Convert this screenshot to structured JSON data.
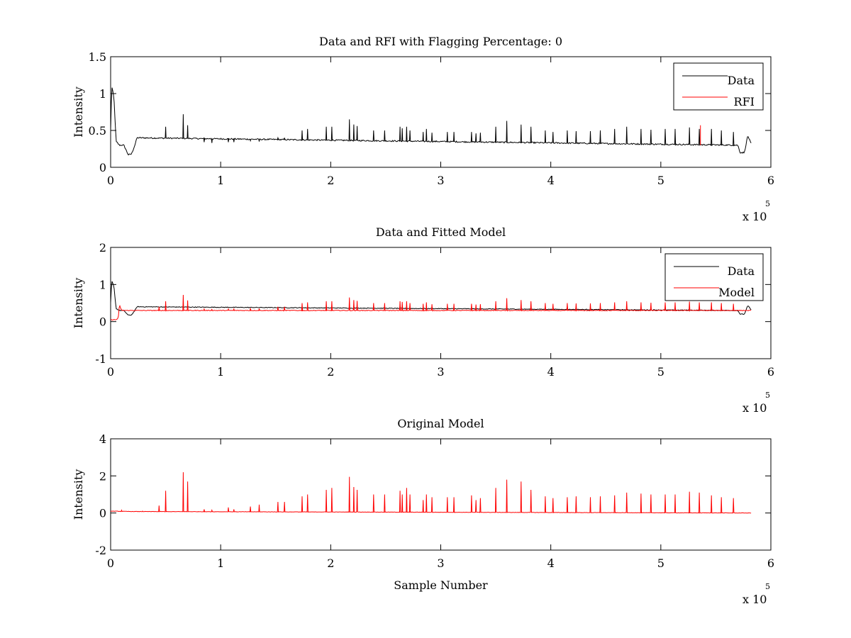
{
  "figure": {
    "background": "#ffffff"
  },
  "chart_data": [
    {
      "type": "line",
      "title": "Data and RFI with Flagging Percentage: 0",
      "xlabel": "",
      "ylabel": "Intensity",
      "xlim": [
        0,
        6
      ],
      "ylim": [
        0,
        1.5
      ],
      "xticks": [
        "0",
        "1",
        "2",
        "3",
        "4",
        "5",
        "6"
      ],
      "yticks": [
        "0",
        "0.5",
        "1",
        "1.5"
      ],
      "x_scale_label": "x 10",
      "x_scale_exponent": "5",
      "legend_position": "top-right",
      "grid": false,
      "series": [
        {
          "name": "Data",
          "color": "#000000",
          "baseline": 0.3,
          "profile": [
            [
              0,
              0.5
            ],
            [
              0.01,
              1.1
            ],
            [
              0.03,
              0.95
            ],
            [
              0.05,
              0.35
            ],
            [
              0.08,
              0.3
            ],
            [
              0.12,
              0.3
            ],
            [
              0.16,
              0.17
            ],
            [
              0.19,
              0.18
            ],
            [
              0.22,
              0.3
            ],
            [
              0.24,
              0.4
            ],
            [
              5.7,
              0.3
            ],
            [
              5.72,
              0.2
            ],
            [
              5.76,
              0.2
            ],
            [
              5.79,
              0.43
            ],
            [
              5.82,
              0.32
            ]
          ],
          "spikes": [
            [
              0.44,
              0.4
            ],
            [
              0.5,
              0.55
            ],
            [
              0.66,
              0.72
            ],
            [
              0.7,
              0.57
            ],
            [
              0.85,
              0.34
            ],
            [
              0.92,
              0.33
            ],
            [
              1.07,
              0.34
            ],
            [
              1.12,
              0.34
            ],
            [
              1.27,
              0.36
            ],
            [
              1.35,
              0.35
            ],
            [
              1.52,
              0.4
            ],
            [
              1.58,
              0.4
            ],
            [
              1.74,
              0.5
            ],
            [
              1.79,
              0.52
            ],
            [
              1.96,
              0.55
            ],
            [
              2.01,
              0.55
            ],
            [
              2.17,
              0.65
            ],
            [
              2.21,
              0.58
            ],
            [
              2.24,
              0.56
            ],
            [
              2.39,
              0.5
            ],
            [
              2.49,
              0.5
            ],
            [
              2.63,
              0.55
            ],
            [
              2.65,
              0.53
            ],
            [
              2.69,
              0.55
            ],
            [
              2.72,
              0.5
            ],
            [
              2.84,
              0.48
            ],
            [
              2.87,
              0.52
            ],
            [
              2.92,
              0.47
            ],
            [
              3.06,
              0.48
            ],
            [
              3.12,
              0.48
            ],
            [
              3.28,
              0.48
            ],
            [
              3.32,
              0.46
            ],
            [
              3.36,
              0.47
            ],
            [
              3.5,
              0.55
            ],
            [
              3.6,
              0.63
            ],
            [
              3.73,
              0.58
            ],
            [
              3.82,
              0.55
            ],
            [
              3.95,
              0.5
            ],
            [
              4.02,
              0.48
            ],
            [
              4.15,
              0.5
            ],
            [
              4.23,
              0.49
            ],
            [
              4.36,
              0.49
            ],
            [
              4.45,
              0.5
            ],
            [
              4.58,
              0.52
            ],
            [
              4.69,
              0.55
            ],
            [
              4.82,
              0.52
            ],
            [
              4.91,
              0.51
            ],
            [
              5.04,
              0.52
            ],
            [
              5.13,
              0.52
            ],
            [
              5.26,
              0.54
            ],
            [
              5.35,
              0.52
            ],
            [
              5.46,
              0.52
            ],
            [
              5.55,
              0.5
            ],
            [
              5.66,
              0.48
            ]
          ]
        },
        {
          "name": "RFI",
          "color": "#ff0000",
          "points": [
            [
              5.36,
              0.3
            ],
            [
              5.36,
              0.57
            ]
          ]
        }
      ]
    },
    {
      "type": "line",
      "title": "Data and Fitted Model",
      "xlabel": "",
      "ylabel": "Intensity",
      "xlim": [
        0,
        6
      ],
      "ylim": [
        -1,
        2
      ],
      "xticks": [
        "0",
        "1",
        "2",
        "3",
        "4",
        "5",
        "6"
      ],
      "yticks": [
        "-1",
        "0",
        "1",
        "2"
      ],
      "x_scale_label": "x 10",
      "x_scale_exponent": "5",
      "legend_position": "top-right",
      "grid": false,
      "series": [
        {
          "name": "Data",
          "color": "#000000",
          "baseline": 0.3,
          "profile": [
            [
              0,
              0.5
            ],
            [
              0.01,
              1.1
            ],
            [
              0.03,
              0.95
            ],
            [
              0.05,
              0.35
            ],
            [
              0.08,
              0.3
            ],
            [
              0.12,
              0.3
            ],
            [
              0.16,
              0.17
            ],
            [
              0.19,
              0.18
            ],
            [
              0.22,
              0.3
            ],
            [
              0.24,
              0.4
            ],
            [
              5.7,
              0.3
            ],
            [
              5.72,
              0.2
            ],
            [
              5.76,
              0.2
            ],
            [
              5.79,
              0.43
            ],
            [
              5.82,
              0.32
            ]
          ],
          "spikes": []
        },
        {
          "name": "Model",
          "color": "#ff0000",
          "baseline": 0.3,
          "profile": [
            [
              0,
              0.05
            ],
            [
              0.05,
              0.05
            ],
            [
              0.07,
              0.1
            ],
            [
              0.08,
              0.45
            ],
            [
              0.1,
              0.3
            ],
            [
              0.12,
              0.3
            ],
            [
              5.82,
              0.3
            ]
          ],
          "spikes": [
            [
              0.44,
              0.4
            ],
            [
              0.5,
              0.55
            ],
            [
              0.66,
              0.72
            ],
            [
              0.7,
              0.57
            ],
            [
              0.85,
              0.34
            ],
            [
              0.92,
              0.33
            ],
            [
              1.07,
              0.34
            ],
            [
              1.12,
              0.34
            ],
            [
              1.27,
              0.36
            ],
            [
              1.35,
              0.35
            ],
            [
              1.52,
              0.4
            ],
            [
              1.58,
              0.4
            ],
            [
              1.74,
              0.5
            ],
            [
              1.79,
              0.52
            ],
            [
              1.96,
              0.55
            ],
            [
              2.01,
              0.55
            ],
            [
              2.17,
              0.65
            ],
            [
              2.21,
              0.58
            ],
            [
              2.24,
              0.56
            ],
            [
              2.39,
              0.5
            ],
            [
              2.49,
              0.5
            ],
            [
              2.63,
              0.55
            ],
            [
              2.65,
              0.53
            ],
            [
              2.69,
              0.55
            ],
            [
              2.72,
              0.5
            ],
            [
              2.84,
              0.48
            ],
            [
              2.87,
              0.52
            ],
            [
              2.92,
              0.47
            ],
            [
              3.06,
              0.48
            ],
            [
              3.12,
              0.48
            ],
            [
              3.28,
              0.48
            ],
            [
              3.32,
              0.46
            ],
            [
              3.36,
              0.47
            ],
            [
              3.5,
              0.55
            ],
            [
              3.6,
              0.63
            ],
            [
              3.73,
              0.58
            ],
            [
              3.82,
              0.55
            ],
            [
              3.95,
              0.5
            ],
            [
              4.02,
              0.48
            ],
            [
              4.15,
              0.5
            ],
            [
              4.23,
              0.49
            ],
            [
              4.36,
              0.49
            ],
            [
              4.45,
              0.5
            ],
            [
              4.58,
              0.52
            ],
            [
              4.69,
              0.55
            ],
            [
              4.82,
              0.52
            ],
            [
              4.91,
              0.51
            ],
            [
              5.04,
              0.52
            ],
            [
              5.13,
              0.52
            ],
            [
              5.26,
              0.54
            ],
            [
              5.35,
              0.52
            ],
            [
              5.46,
              0.52
            ],
            [
              5.55,
              0.5
            ],
            [
              5.66,
              0.48
            ]
          ]
        }
      ]
    },
    {
      "type": "line",
      "title": "Original Model",
      "xlabel": "Sample Number",
      "ylabel": "Intensity",
      "xlim": [
        0,
        6
      ],
      "ylim": [
        -2,
        4
      ],
      "xticks": [
        "0",
        "1",
        "2",
        "3",
        "4",
        "5",
        "6"
      ],
      "yticks": [
        "-2",
        "0",
        "2",
        "4"
      ],
      "x_scale_label": "x 10",
      "x_scale_exponent": "5",
      "legend_position": "none",
      "grid": false,
      "series": [
        {
          "color": "#ff0000",
          "baseline": 0.0,
          "profile": [
            [
              0,
              0.1
            ],
            [
              0.2,
              0.08
            ],
            [
              5.82,
              0.0
            ]
          ],
          "spikes": [
            [
              0.1,
              0.15
            ],
            [
              0.29,
              0.1
            ],
            [
              0.44,
              0.4
            ],
            [
              0.5,
              1.2
            ],
            [
              0.66,
              2.2
            ],
            [
              0.7,
              1.7
            ],
            [
              0.85,
              0.2
            ],
            [
              0.92,
              0.15
            ],
            [
              1.07,
              0.3
            ],
            [
              1.12,
              0.2
            ],
            [
              1.27,
              0.35
            ],
            [
              1.35,
              0.45
            ],
            [
              1.52,
              0.6
            ],
            [
              1.58,
              0.6
            ],
            [
              1.74,
              0.9
            ],
            [
              1.79,
              1.0
            ],
            [
              1.96,
              1.25
            ],
            [
              2.01,
              1.35
            ],
            [
              2.17,
              1.95
            ],
            [
              2.21,
              1.4
            ],
            [
              2.24,
              1.25
            ],
            [
              2.39,
              1.0
            ],
            [
              2.49,
              1.0
            ],
            [
              2.63,
              1.2
            ],
            [
              2.65,
              1.0
            ],
            [
              2.69,
              1.35
            ],
            [
              2.72,
              1.0
            ],
            [
              2.84,
              0.7
            ],
            [
              2.87,
              1.0
            ],
            [
              2.92,
              0.85
            ],
            [
              3.06,
              0.85
            ],
            [
              3.12,
              0.85
            ],
            [
              3.28,
              0.95
            ],
            [
              3.32,
              0.7
            ],
            [
              3.36,
              0.8
            ],
            [
              3.5,
              1.35
            ],
            [
              3.6,
              1.8
            ],
            [
              3.73,
              1.7
            ],
            [
              3.82,
              1.25
            ],
            [
              3.95,
              0.9
            ],
            [
              4.02,
              0.8
            ],
            [
              4.15,
              0.85
            ],
            [
              4.23,
              0.9
            ],
            [
              4.36,
              0.85
            ],
            [
              4.45,
              0.9
            ],
            [
              4.58,
              0.95
            ],
            [
              4.69,
              1.1
            ],
            [
              4.82,
              1.05
            ],
            [
              4.91,
              1.0
            ],
            [
              5.04,
              1.0
            ],
            [
              5.13,
              1.0
            ],
            [
              5.26,
              1.15
            ],
            [
              5.35,
              1.1
            ],
            [
              5.46,
              0.95
            ],
            [
              5.55,
              0.85
            ],
            [
              5.66,
              0.8
            ]
          ]
        }
      ]
    }
  ]
}
